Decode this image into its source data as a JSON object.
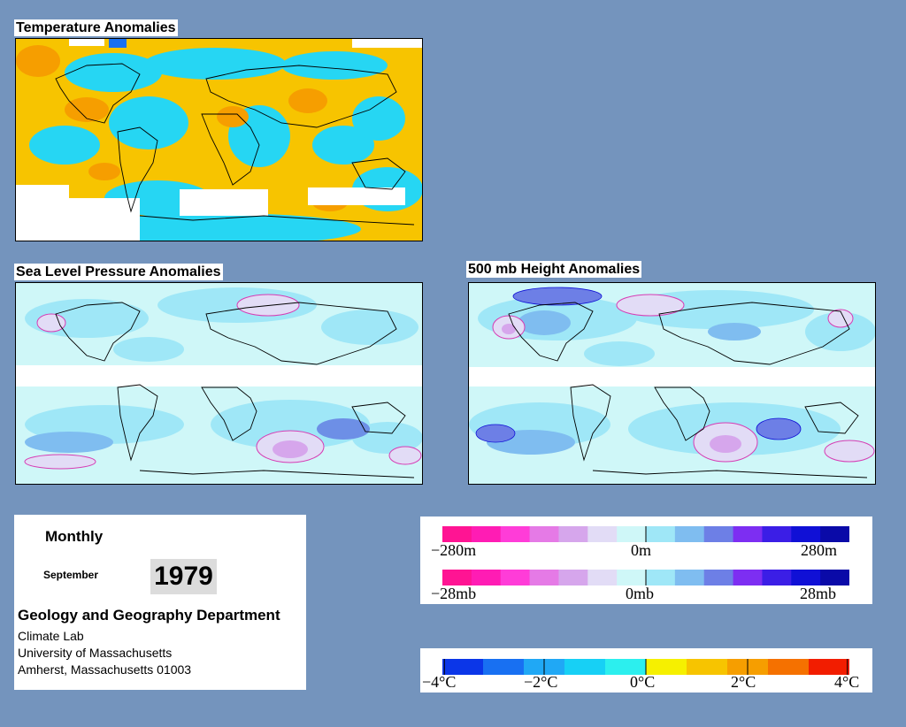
{
  "maps": {
    "temperature_title": "Temperature Anomalies",
    "slp_title": "Sea Level Pressure Anomalies",
    "height_title": "500 mb Height Anomalies"
  },
  "info": {
    "period": "Monthly",
    "month": "September",
    "year": "1979",
    "department": "Geology and Geography Department",
    "lab": "Climate Lab",
    "university": "University of Massachusetts",
    "address": "Amherst, Massachusetts 01003"
  },
  "legends": {
    "height": {
      "min": "−280m",
      "mid": "0m",
      "max": "280m"
    },
    "pressure": {
      "min": "−28mb",
      "mid": "0mb",
      "max": "28mb"
    },
    "temperature": {
      "t1": "−4°C",
      "t2": "−2°C",
      "t3": "0°C",
      "t4": "2°C",
      "t5": "4°C"
    }
  },
  "colors": {
    "background": "#7494bd",
    "anomaly_scale": [
      "#ff1493",
      "#ff1cb4",
      "#ff3cd8",
      "#e57ae6",
      "#d6a6ec",
      "#e2dcf6",
      "#cff7f8",
      "#9fe7f7",
      "#7fbdf0",
      "#6d7fe6",
      "#7d2ef2",
      "#3b1ee6",
      "#1010d6",
      "#0a0aa8"
    ],
    "temperature_scale": [
      "#0b36e8",
      "#1870f2",
      "#20a8f5",
      "#17d0f5",
      "#2cefee",
      "#f6f000",
      "#f7c400",
      "#f69e00",
      "#f57100",
      "#f21d00"
    ]
  }
}
